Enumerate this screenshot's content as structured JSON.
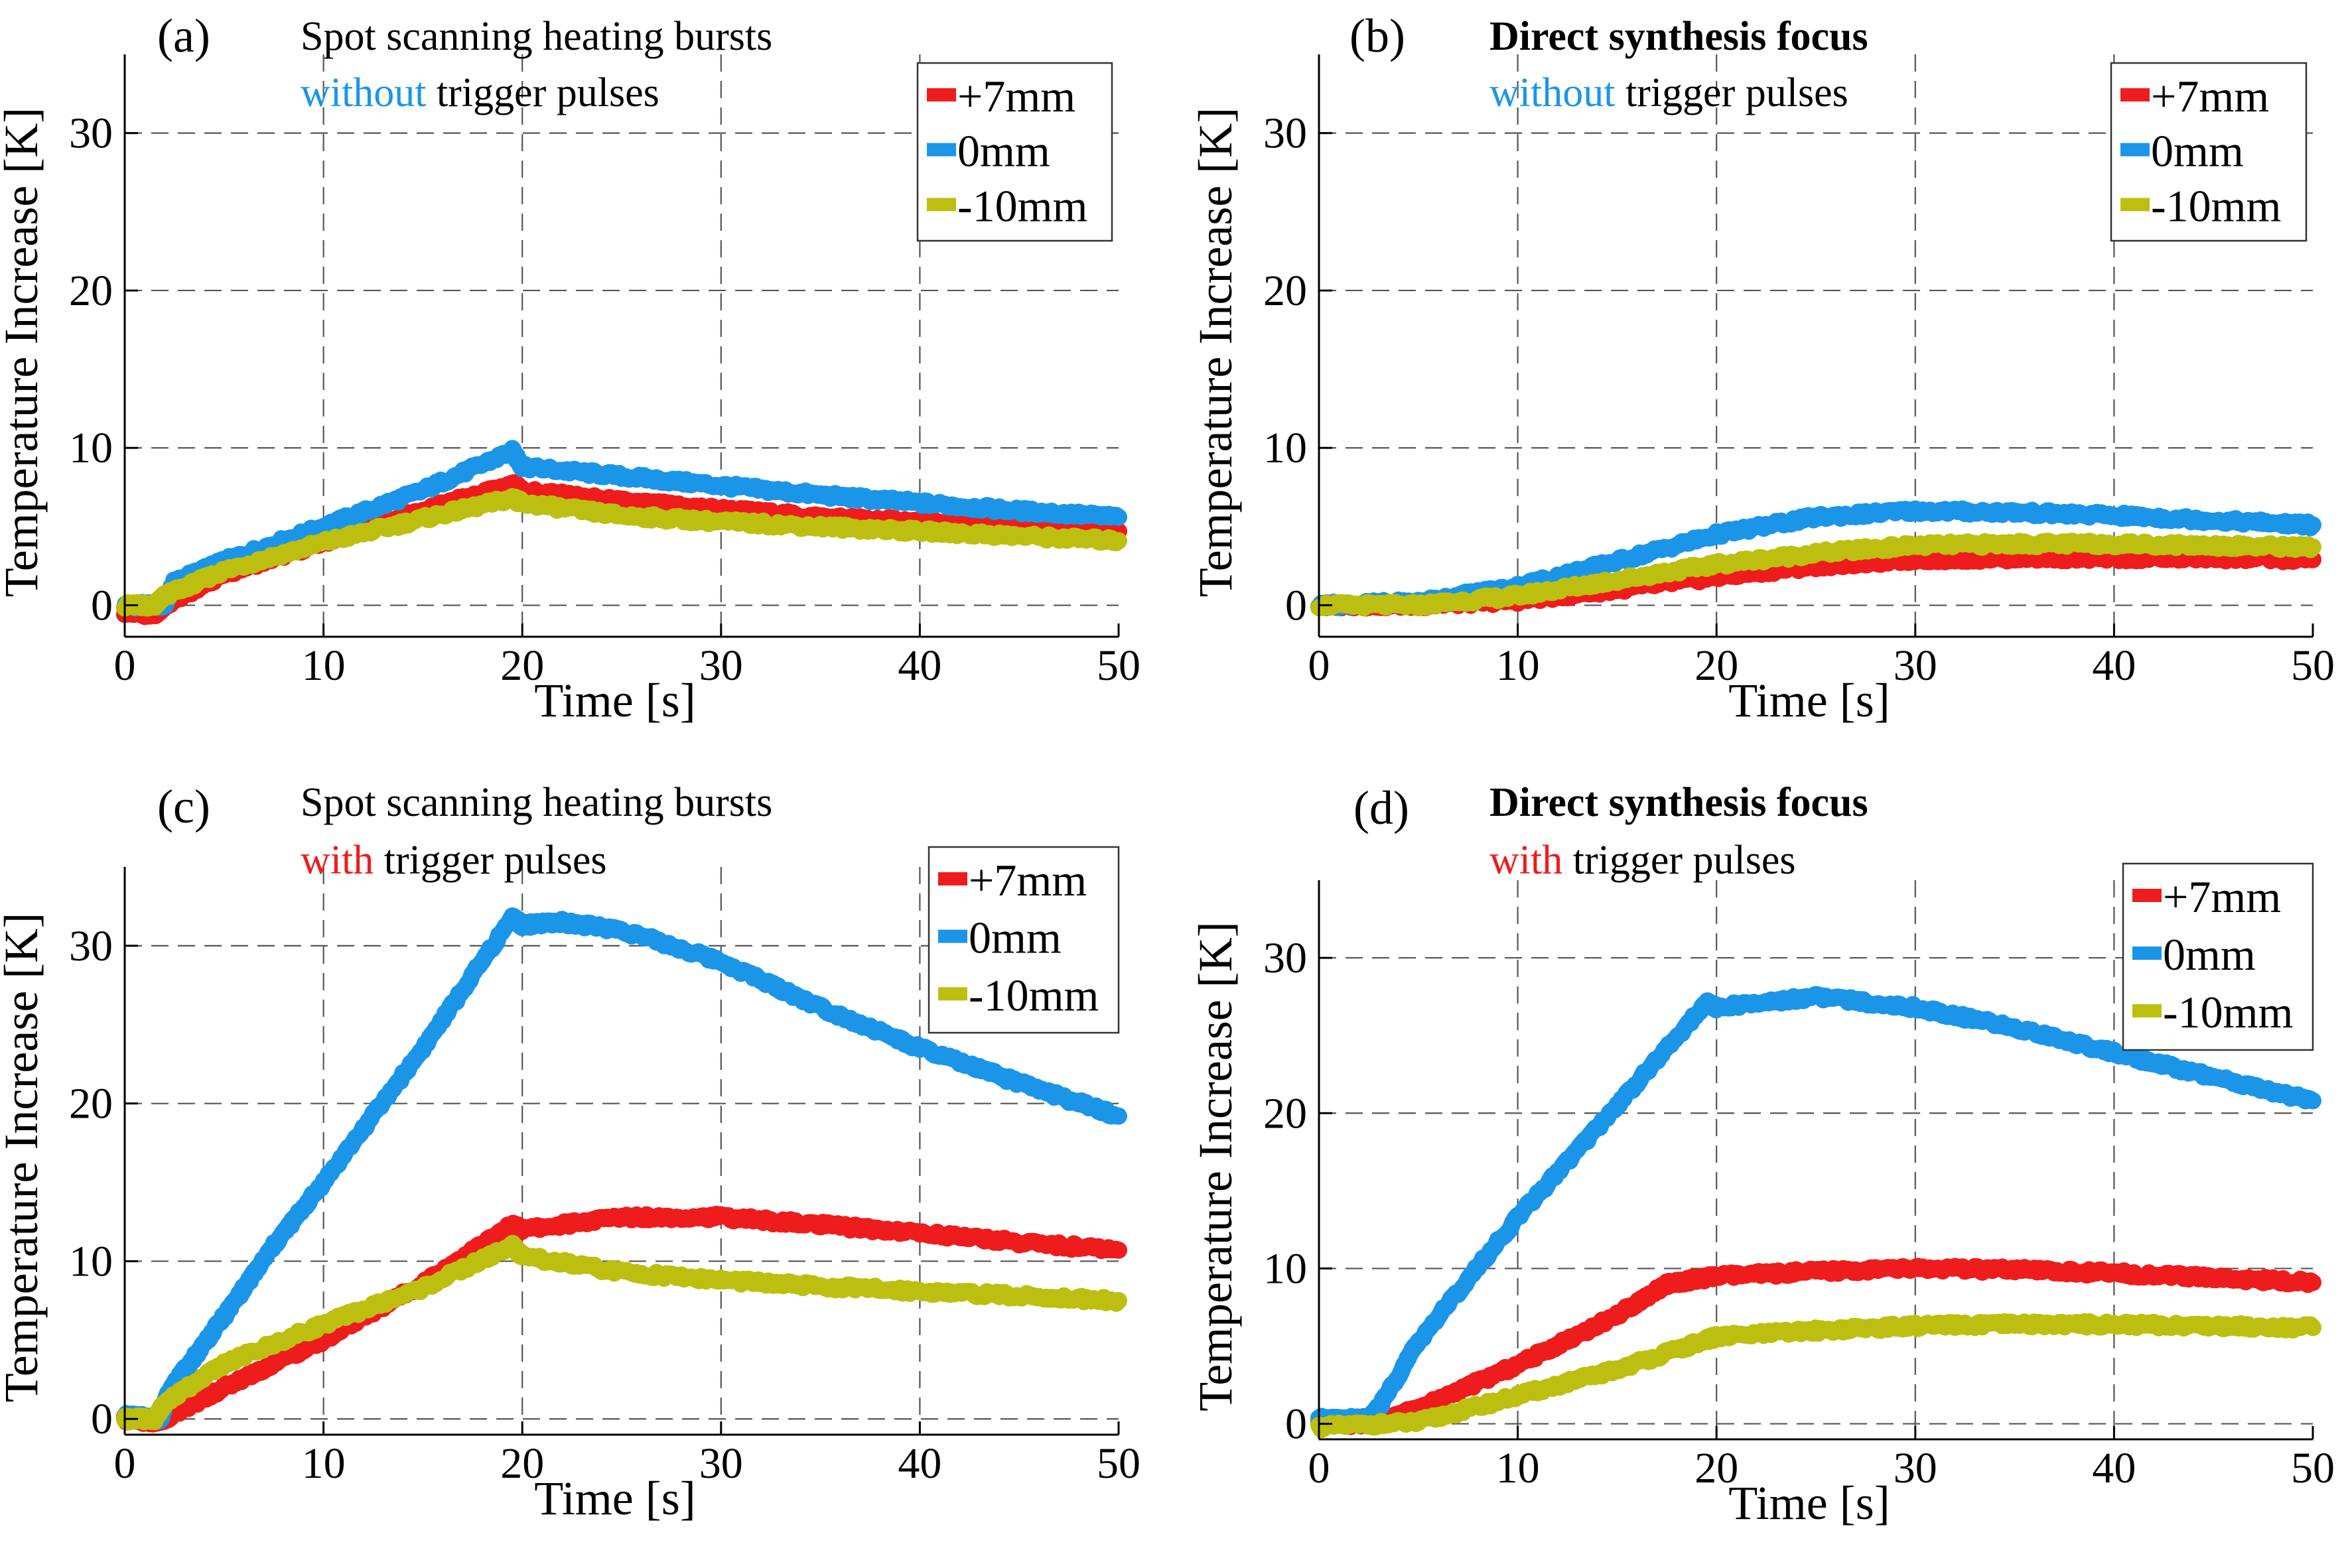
{
  "colors": {
    "red": "#ee1c1c",
    "blue": "#1b95e8",
    "olive": "#bcbf0f",
    "grid": "#555555",
    "axis": "#000000",
    "text": "#000000"
  },
  "chart_data": [
    {
      "type": "line",
      "panel": "(a)",
      "title_line1": "Spot scanning heating bursts",
      "title_line1_bold": false,
      "title_line2_colored": "without",
      "title_line2_color": "#1b95e8",
      "title_line2_rest": " trigger pulses",
      "xlabel": "Time [s]",
      "ylabel": "Temperature Increase [K]",
      "xlim": [
        0,
        50
      ],
      "ylim": [
        -2,
        35
      ],
      "xticks": [
        0,
        10,
        20,
        30,
        40,
        50
      ],
      "yticks": [
        0,
        10,
        20,
        30
      ],
      "grid": true,
      "legend_position": "top-right",
      "series": [
        {
          "name": "+7mm",
          "color": "#ee1c1c",
          "x": [
            0,
            1.5,
            2,
            5,
            10,
            15,
            19.5,
            20,
            25,
            30,
            35,
            40,
            45,
            50
          ],
          "y": [
            -0.4,
            -0.6,
            0,
            2,
            4,
            6,
            7.7,
            7.3,
            6.6,
            6.1,
            5.6,
            5.3,
            4.9,
            4.7
          ]
        },
        {
          "name": "0mm",
          "color": "#1b95e8",
          "x": [
            0,
            2,
            2.5,
            5,
            10,
            15,
            19.5,
            20,
            25,
            30,
            35,
            40,
            45,
            50
          ],
          "y": [
            0,
            0,
            1.5,
            2.8,
            5,
            7.3,
            9.8,
            8.8,
            8.2,
            7.6,
            7,
            6.5,
            6,
            5.6
          ]
        },
        {
          "name": "-10mm",
          "color": "#bcbf0f",
          "x": [
            0,
            1.5,
            2,
            5,
            10,
            15,
            19.5,
            20,
            25,
            30,
            35,
            40,
            45,
            50
          ],
          "y": [
            0,
            0,
            0.6,
            2.2,
            4,
            5.5,
            6.8,
            6.5,
            5.7,
            5.3,
            5,
            4.7,
            4.4,
            4.1
          ]
        }
      ]
    },
    {
      "type": "line",
      "panel": "(b)",
      "title_line1": "Direct synthesis focus",
      "title_line1_bold": true,
      "title_line2_colored": "without",
      "title_line2_color": "#1b95e8",
      "title_line2_rest": " trigger pulses",
      "xlabel": "Time [s]",
      "ylabel": "Temperature Increase [K]",
      "xlim": [
        0,
        50
      ],
      "ylim": [
        -2,
        35
      ],
      "xticks": [
        0,
        10,
        20,
        30,
        40,
        50
      ],
      "yticks": [
        0,
        10,
        20,
        30
      ],
      "grid": true,
      "legend_position": "top-right",
      "series": [
        {
          "name": "+7mm",
          "color": "#ee1c1c",
          "x": [
            0,
            5,
            10,
            15,
            20,
            25,
            30,
            35,
            40,
            45,
            50
          ],
          "y": [
            0,
            0,
            0.3,
            1,
            1.8,
            2.5,
            2.9,
            3,
            3,
            3,
            2.9
          ]
        },
        {
          "name": "0mm",
          "color": "#1b95e8",
          "x": [
            0,
            5,
            10,
            15,
            20,
            25,
            30,
            35,
            40,
            45,
            50
          ],
          "y": [
            0,
            0.2,
            1.2,
            2.8,
            4.5,
            5.6,
            6,
            5.9,
            5.7,
            5.4,
            5.1
          ]
        },
        {
          "name": "-10mm",
          "color": "#bcbf0f",
          "x": [
            0,
            5,
            10,
            15,
            20,
            25,
            30,
            35,
            40,
            45,
            50
          ],
          "y": [
            0,
            0,
            0.6,
            1.6,
            2.6,
            3.3,
            3.8,
            3.9,
            3.9,
            3.8,
            3.7
          ]
        }
      ]
    },
    {
      "type": "line",
      "panel": "(c)",
      "title_line1": "Spot scanning heating bursts",
      "title_line1_bold": false,
      "title_line2_colored": "with",
      "title_line2_color": "#ee1c1c",
      "title_line2_rest": " trigger pulses",
      "xlabel": "Time [s]",
      "ylabel": "Temperature Increase [K]",
      "xlim": [
        0,
        50
      ],
      "ylim": [
        -1,
        35
      ],
      "xticks": [
        0,
        10,
        20,
        30,
        40,
        50
      ],
      "yticks": [
        0,
        10,
        20,
        30
      ],
      "grid": true,
      "legend_position": "top-right",
      "series": [
        {
          "name": "+7mm",
          "color": "#ee1c1c",
          "x": [
            0,
            1.5,
            2,
            5,
            10,
            15,
            19.5,
            20,
            25,
            30,
            35,
            40,
            45,
            50
          ],
          "y": [
            0,
            -0.2,
            0,
            2,
            5,
            8.6,
            12.3,
            12,
            12.8,
            12.8,
            12.3,
            11.8,
            11.2,
            10.7
          ]
        },
        {
          "name": "0mm",
          "color": "#1b95e8",
          "x": [
            0,
            1.8,
            2.2,
            5,
            7.5,
            10,
            15,
            19.5,
            20,
            22,
            25,
            30,
            35,
            40,
            45,
            50
          ],
          "y": [
            0.2,
            0,
            1.7,
            6.5,
            11,
            15,
            23.5,
            31.8,
            31.3,
            31.5,
            31,
            29,
            26.1,
            23.5,
            21.3,
            19.2
          ]
        },
        {
          "name": "-10mm",
          "color": "#bcbf0f",
          "x": [
            0,
            1.5,
            2,
            5,
            10,
            15,
            19.5,
            20,
            25,
            30,
            35,
            40,
            45,
            50
          ],
          "y": [
            0,
            0,
            1,
            3.5,
            6,
            8.3,
            11,
            10.3,
            9.3,
            8.8,
            8.4,
            8.1,
            7.8,
            7.5
          ]
        }
      ]
    },
    {
      "type": "line",
      "panel": "(d)",
      "title_line1": "Direct synthesis focus",
      "title_line1_bold": true,
      "title_line2_colored": "with",
      "title_line2_color": "#ee1c1c",
      "title_line2_rest": " trigger pulses",
      "xlabel": "Time [s]",
      "ylabel": "Temperature Increase [K]",
      "xlim": [
        0,
        50
      ],
      "ylim": [
        -1,
        35
      ],
      "xticks": [
        0,
        10,
        20,
        30,
        40,
        50
      ],
      "yticks": [
        0,
        10,
        20,
        30
      ],
      "grid": true,
      "legend_position": "top-right",
      "series": [
        {
          "name": "+7mm",
          "color": "#ee1c1c",
          "x": [
            0,
            3,
            5,
            10,
            15,
            17.5,
            20,
            25,
            30,
            35,
            40,
            45,
            50
          ],
          "y": [
            0,
            0,
            1,
            3.8,
            7,
            9,
            9.5,
            9.8,
            10,
            9.9,
            9.7,
            9.4,
            9.1
          ]
        },
        {
          "name": "0mm",
          "color": "#1b95e8",
          "x": [
            0,
            2.5,
            3,
            5,
            10,
            15,
            19.5,
            20,
            25,
            30,
            35,
            40,
            45,
            50
          ],
          "y": [
            0.3,
            0.3,
            1,
            5.3,
            13.3,
            20.5,
            27.1,
            26.8,
            27.5,
            26.8,
            25.5,
            23.9,
            22.3,
            20.8
          ]
        },
        {
          "name": "-10mm",
          "color": "#bcbf0f",
          "x": [
            0,
            5,
            10,
            15,
            19.5,
            20,
            25,
            30,
            35,
            40,
            45,
            50
          ],
          "y": [
            -0.2,
            0.1,
            1.8,
            3.5,
            5.4,
            5.6,
            6,
            6.3,
            6.4,
            6.4,
            6.3,
            6.2
          ]
        }
      ]
    }
  ]
}
